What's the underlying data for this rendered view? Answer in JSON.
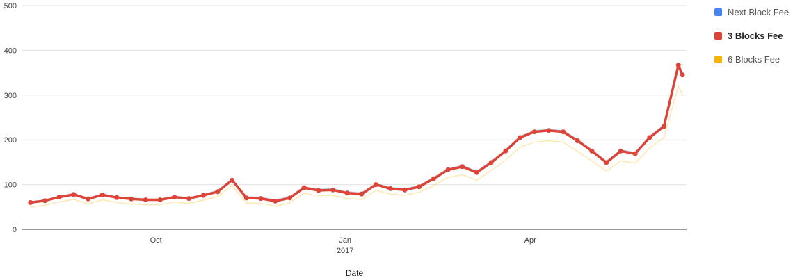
{
  "chart_data": {
    "type": "line",
    "title": "",
    "xlabel": "Date",
    "ylabel": "",
    "ylim": [
      0,
      500
    ],
    "yticks": [
      0,
      100,
      200,
      300,
      400,
      500
    ],
    "xlim": [
      "2016-07-28",
      "2017-06-16"
    ],
    "xticks": [
      {
        "date": "2016-10-01",
        "label": "Oct",
        "sublabel": ""
      },
      {
        "date": "2017-01-01",
        "label": "Jan",
        "sublabel": "2017"
      },
      {
        "date": "2017-04-01",
        "label": "Apr",
        "sublabel": ""
      }
    ],
    "grid": true,
    "legend_position": "right",
    "highlighted_series": "3 Blocks Fee",
    "series": [
      {
        "name": "Next Block Fee",
        "color": "#4285f4",
        "points": [
          [
            "2016-08-01",
            62
          ],
          [
            "2016-08-08",
            66
          ],
          [
            "2016-08-15",
            74
          ],
          [
            "2016-08-22",
            80
          ],
          [
            "2016-08-29",
            70
          ],
          [
            "2016-09-05",
            79
          ],
          [
            "2016-09-12",
            73
          ],
          [
            "2016-09-19",
            70
          ],
          [
            "2016-09-26",
            68
          ],
          [
            "2016-10-03",
            68
          ],
          [
            "2016-10-10",
            74
          ],
          [
            "2016-10-17",
            71
          ],
          [
            "2016-10-24",
            78
          ],
          [
            "2016-10-31",
            87
          ],
          [
            "2016-11-07",
            112
          ],
          [
            "2016-11-14",
            73
          ],
          [
            "2016-11-21",
            72
          ],
          [
            "2016-11-28",
            66
          ],
          [
            "2016-12-05",
            73
          ],
          [
            "2016-12-12",
            95
          ],
          [
            "2016-12-19",
            90
          ],
          [
            "2016-12-26",
            91
          ],
          [
            "2017-01-02",
            84
          ],
          [
            "2017-01-09",
            82
          ],
          [
            "2017-01-16",
            102
          ],
          [
            "2017-01-23",
            94
          ],
          [
            "2017-01-30",
            91
          ],
          [
            "2017-02-06",
            98
          ],
          [
            "2017-02-13",
            116
          ],
          [
            "2017-02-20",
            136
          ],
          [
            "2017-02-27",
            143
          ],
          [
            "2017-03-06",
            130
          ],
          [
            "2017-03-13",
            152
          ],
          [
            "2017-03-20",
            178
          ],
          [
            "2017-03-27",
            208
          ],
          [
            "2017-04-03",
            221
          ],
          [
            "2017-04-10",
            224
          ],
          [
            "2017-04-17",
            221
          ],
          [
            "2017-04-24",
            201
          ],
          [
            "2017-05-01",
            178
          ],
          [
            "2017-05-08",
            152
          ],
          [
            "2017-05-15",
            178
          ],
          [
            "2017-05-22",
            172
          ],
          [
            "2017-05-29",
            208
          ],
          [
            "2017-06-05",
            233
          ],
          [
            "2017-06-12",
            370
          ],
          [
            "2017-06-14",
            368
          ]
        ]
      },
      {
        "name": "3 Blocks Fee",
        "color": "#db4437",
        "points": [
          [
            "2016-08-01",
            60
          ],
          [
            "2016-08-08",
            64
          ],
          [
            "2016-08-15",
            72
          ],
          [
            "2016-08-22",
            78
          ],
          [
            "2016-08-29",
            68
          ],
          [
            "2016-09-05",
            77
          ],
          [
            "2016-09-12",
            71
          ],
          [
            "2016-09-19",
            68
          ],
          [
            "2016-09-26",
            66
          ],
          [
            "2016-10-03",
            66
          ],
          [
            "2016-10-10",
            72
          ],
          [
            "2016-10-17",
            69
          ],
          [
            "2016-10-24",
            76
          ],
          [
            "2016-10-31",
            84
          ],
          [
            "2016-11-07",
            110
          ],
          [
            "2016-11-14",
            70
          ],
          [
            "2016-11-21",
            69
          ],
          [
            "2016-11-28",
            63
          ],
          [
            "2016-12-05",
            70
          ],
          [
            "2016-12-12",
            93
          ],
          [
            "2016-12-19",
            87
          ],
          [
            "2016-12-26",
            88
          ],
          [
            "2017-01-02",
            81
          ],
          [
            "2017-01-09",
            79
          ],
          [
            "2017-01-16",
            100
          ],
          [
            "2017-01-23",
            91
          ],
          [
            "2017-01-30",
            88
          ],
          [
            "2017-02-06",
            95
          ],
          [
            "2017-02-13",
            113
          ],
          [
            "2017-02-20",
            133
          ],
          [
            "2017-02-27",
            140
          ],
          [
            "2017-03-06",
            127
          ],
          [
            "2017-03-13",
            149
          ],
          [
            "2017-03-20",
            175
          ],
          [
            "2017-03-27",
            205
          ],
          [
            "2017-04-03",
            218
          ],
          [
            "2017-04-10",
            221
          ],
          [
            "2017-04-17",
            218
          ],
          [
            "2017-04-24",
            198
          ],
          [
            "2017-05-01",
            175
          ],
          [
            "2017-05-08",
            149
          ],
          [
            "2017-05-15",
            175
          ],
          [
            "2017-05-22",
            169
          ],
          [
            "2017-05-29",
            205
          ],
          [
            "2017-06-05",
            230
          ],
          [
            "2017-06-12",
            367
          ],
          [
            "2017-06-14",
            345
          ]
        ]
      },
      {
        "name": "6 Blocks Fee",
        "color": "#f4b400",
        "points": [
          [
            "2016-08-01",
            50
          ],
          [
            "2016-08-08",
            54
          ],
          [
            "2016-08-15",
            61
          ],
          [
            "2016-08-22",
            67
          ],
          [
            "2016-08-29",
            57
          ],
          [
            "2016-09-05",
            66
          ],
          [
            "2016-09-12",
            60
          ],
          [
            "2016-09-19",
            57
          ],
          [
            "2016-09-26",
            55
          ],
          [
            "2016-10-03",
            55
          ],
          [
            "2016-10-10",
            61
          ],
          [
            "2016-10-17",
            58
          ],
          [
            "2016-10-24",
            65
          ],
          [
            "2016-10-31",
            73
          ],
          [
            "2016-11-07",
            98
          ],
          [
            "2016-11-14",
            59
          ],
          [
            "2016-11-21",
            58
          ],
          [
            "2016-11-28",
            52
          ],
          [
            "2016-12-05",
            59
          ],
          [
            "2016-12-12",
            81
          ],
          [
            "2016-12-19",
            75
          ],
          [
            "2016-12-26",
            76
          ],
          [
            "2017-01-02",
            69
          ],
          [
            "2017-01-09",
            67
          ],
          [
            "2017-01-16",
            87
          ],
          [
            "2017-01-23",
            79
          ],
          [
            "2017-01-30",
            76
          ],
          [
            "2017-02-06",
            83
          ],
          [
            "2017-02-13",
            98
          ],
          [
            "2017-02-20",
            116
          ],
          [
            "2017-02-27",
            122
          ],
          [
            "2017-03-06",
            110
          ],
          [
            "2017-03-13",
            131
          ],
          [
            "2017-03-20",
            155
          ],
          [
            "2017-03-27",
            183
          ],
          [
            "2017-04-03",
            195
          ],
          [
            "2017-04-10",
            198
          ],
          [
            "2017-04-17",
            195
          ],
          [
            "2017-04-24",
            174
          ],
          [
            "2017-05-01",
            153
          ],
          [
            "2017-05-08",
            130
          ],
          [
            "2017-05-15",
            153
          ],
          [
            "2017-05-22",
            148
          ],
          [
            "2017-05-29",
            182
          ],
          [
            "2017-06-05",
            205
          ],
          [
            "2017-06-12",
            320
          ],
          [
            "2017-06-14",
            300
          ]
        ]
      }
    ]
  }
}
